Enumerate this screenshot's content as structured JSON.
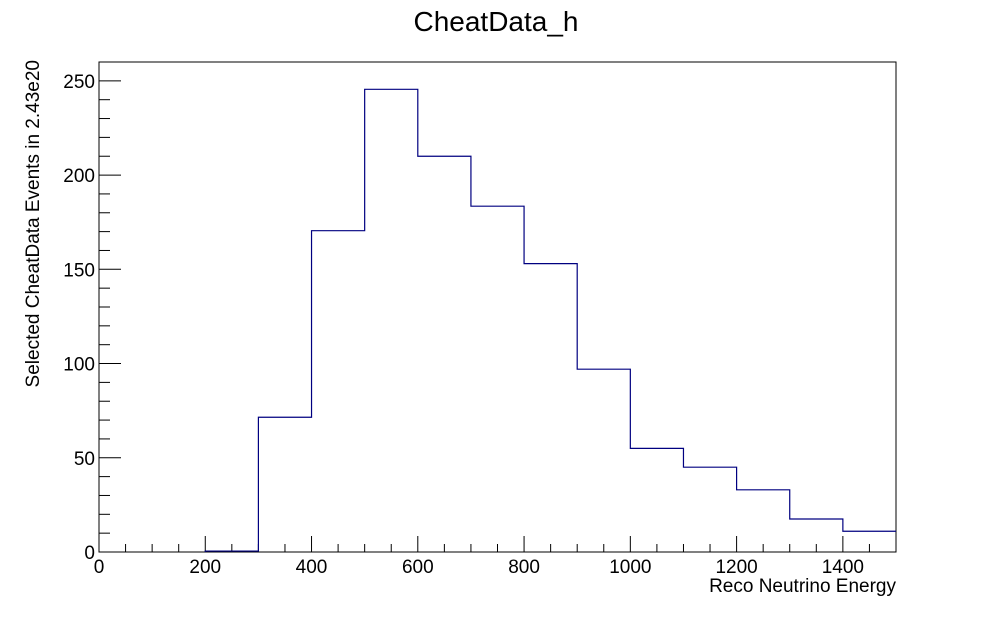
{
  "chart_data": {
    "type": "bar",
    "title": "CheatData_h",
    "xlabel": "Reco Neutrino Energy",
    "ylabel": "Selected CheatData Events in 2.43e20",
    "xlim": [
      0,
      1500
    ],
    "ylim": [
      0,
      260
    ],
    "bin_edges": [
      200,
      300,
      400,
      500,
      600,
      700,
      800,
      900,
      1000,
      1100,
      1200,
      1300,
      1400,
      1500
    ],
    "values": [
      0.5,
      71.5,
      170.5,
      245.5,
      210,
      183.5,
      153,
      97,
      55,
      45,
      33,
      17.5,
      11
    ],
    "x_ticks": [
      0,
      200,
      400,
      600,
      800,
      1000,
      1200,
      1400
    ],
    "y_ticks": [
      0,
      50,
      100,
      150,
      200,
      250
    ],
    "line_color": "#000080",
    "grid": false,
    "legend": "none"
  }
}
